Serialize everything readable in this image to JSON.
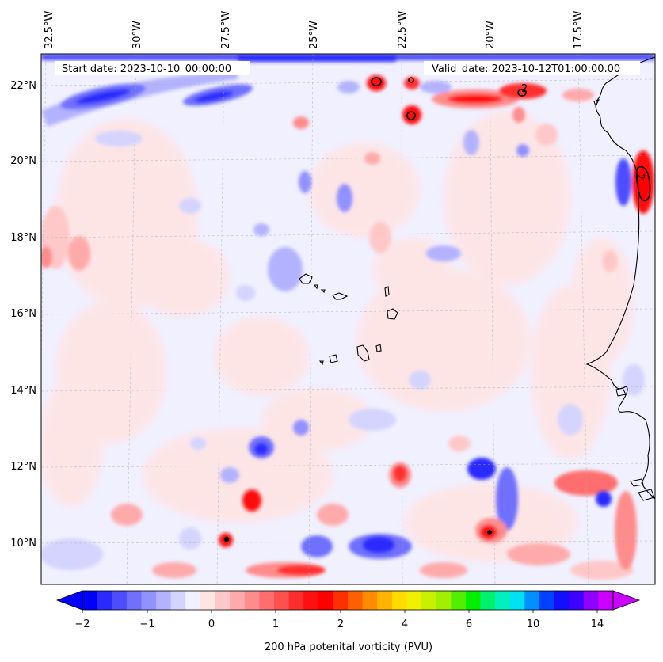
{
  "map": {
    "start_date": "Start date: 2023-10-10_00:00:00",
    "valid_date": "Valid_date: 2023-10-12T01:00:00.00",
    "lon_labels": [
      "32.5°W",
      "30°W",
      "27.5°W",
      "25°W",
      "22.5°W",
      "20°W",
      "17.5°W"
    ],
    "lat_labels": [
      "22°N",
      "20°N",
      "18°N",
      "16°N",
      "14°N",
      "12°N",
      "10°N"
    ],
    "contour_label": "2"
  },
  "colorbar": {
    "label": "200 hPa potenital vorticity (PVU)",
    "tick_labels": [
      "−2",
      "−1",
      "0",
      "1",
      "2",
      "4",
      "6",
      "10",
      "14"
    ],
    "colors": [
      "#0000ff",
      "#2a2aff",
      "#4d4dff",
      "#7070ff",
      "#9191ff",
      "#b2b2ff",
      "#d4d4ff",
      "#f0f0ff",
      "#ffe4e4",
      "#ffc8c8",
      "#ffaaaa",
      "#ff8c8c",
      "#ff6e6e",
      "#ff5050",
      "#ff2e2e",
      "#ff1010",
      "#ff0000",
      "#ff3000",
      "#ff6000",
      "#ff8c00",
      "#ffb400",
      "#ffdc00",
      "#f0f000",
      "#c8f000",
      "#a0f000",
      "#50f000",
      "#00f000",
      "#00f070",
      "#00f0c0",
      "#00e0f0",
      "#0090ff",
      "#0040ff",
      "#1010ff",
      "#4000ff",
      "#9000ff",
      "#cc00ff"
    ],
    "min_color": "#0000ff",
    "max_color": "#cc00ff"
  }
}
